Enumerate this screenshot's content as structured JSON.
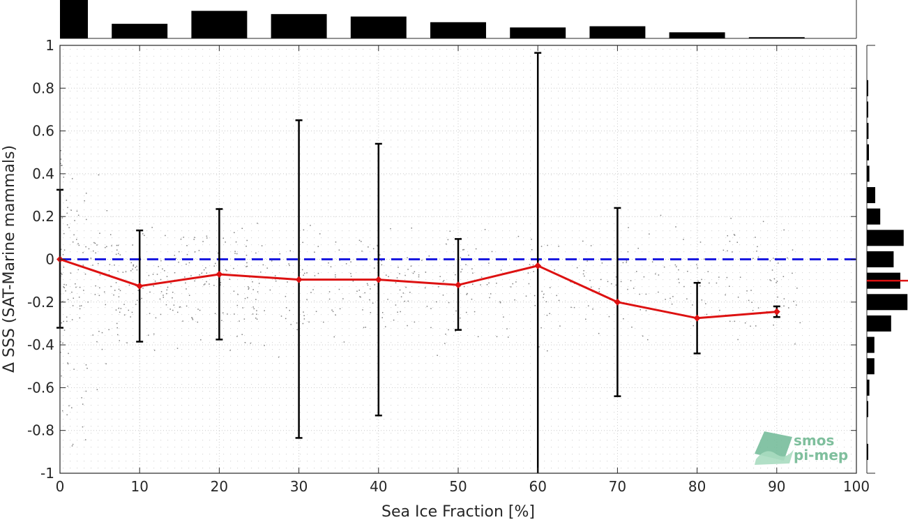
{
  "chart_data": {
    "type": "line",
    "title": "",
    "xlabel": "Sea Ice Fraction [%]",
    "ylabel": "Δ SSS (SAT-Marine mammals)",
    "xlim": [
      0,
      100
    ],
    "ylim": [
      -1,
      1
    ],
    "x_ticks": [
      "0",
      "10",
      "20",
      "30",
      "40",
      "50",
      "60",
      "70",
      "80",
      "90",
      "100"
    ],
    "y_ticks": [
      "1",
      "0.8",
      "0.6",
      "0.4",
      "0.2",
      "0",
      "-0.2",
      "-0.4",
      "-0.6",
      "-0.8",
      "-1"
    ],
    "grid": true,
    "reference_line": {
      "y": 0,
      "color": "#1a1ae0",
      "style": "dashed"
    },
    "mean_series": {
      "color": "#dd1111",
      "x": [
        0,
        10,
        20,
        30,
        40,
        50,
        60,
        70,
        80,
        90
      ],
      "y": [
        0.0,
        -0.125,
        -0.07,
        -0.095,
        -0.095,
        -0.12,
        -0.03,
        -0.2,
        -0.275,
        -0.245
      ],
      "err_low": [
        -0.32,
        -0.385,
        -0.375,
        -0.835,
        -0.73,
        -0.33,
        -1.0,
        -0.64,
        -0.44,
        -0.27
      ],
      "err_high": [
        0.325,
        0.135,
        0.235,
        0.65,
        0.54,
        0.095,
        0.965,
        0.24,
        -0.11,
        -0.22
      ]
    },
    "top_histogram": {
      "bin_edges": [
        0,
        10,
        20,
        30,
        40,
        50,
        60,
        70,
        80,
        90,
        100
      ],
      "relative_counts": [
        1.0,
        0.36,
        0.68,
        0.6,
        0.54,
        0.4,
        0.27,
        0.3,
        0.15,
        0.03
      ]
    },
    "right_histogram": {
      "bin_centers": [
        0.8,
        0.7,
        0.6,
        0.5,
        0.4,
        0.3,
        0.2,
        0.1,
        0.0,
        -0.1,
        -0.2,
        -0.3,
        -0.4,
        -0.5,
        -0.6,
        -0.7,
        -0.9
      ],
      "relative_counts": [
        0.03,
        0.03,
        0.04,
        0.05,
        0.06,
        0.2,
        0.32,
        0.88,
        0.64,
        0.8,
        0.97,
        0.58,
        0.18,
        0.18,
        0.06,
        0.02,
        0.03
      ],
      "mean_marker": -0.1
    },
    "scatter_color": "#7f7f7f"
  },
  "logo": {
    "line1": "smos",
    "line2": "pi-mep"
  }
}
